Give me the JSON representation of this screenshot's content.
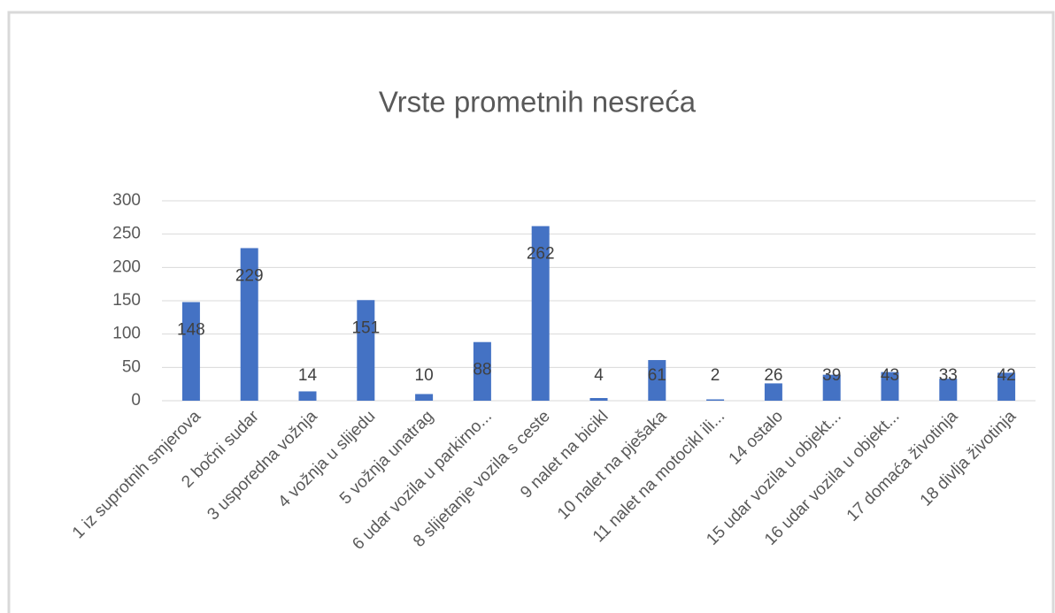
{
  "chart_data": {
    "type": "bar",
    "title": "Vrste prometnih nesreća",
    "categories": [
      "1 iz suprotnih smjerova",
      "2 bočni sudar",
      "3 usporedna vožnja",
      "4 vožnja u slijedu",
      "5 vožnja unatrag",
      "6 udar vozila u parkirno...",
      "8 slijetanje vozila s ceste",
      "9 nalet na bicikl",
      "10 nalet na pješaka",
      "11 nalet na motocikl ili...",
      "14 ostalo",
      "15 udar vozila u objekt...",
      "16 udar vozila u objekt...",
      "17 domaća životinja",
      "18 divlja životinja"
    ],
    "values": [
      148,
      229,
      14,
      151,
      10,
      88,
      262,
      4,
      61,
      2,
      26,
      39,
      43,
      33,
      42
    ],
    "color": "#4472c4",
    "ylim": [
      0,
      300
    ],
    "yticks": [
      0,
      50,
      100,
      150,
      200,
      250,
      300
    ],
    "grid": true
  }
}
